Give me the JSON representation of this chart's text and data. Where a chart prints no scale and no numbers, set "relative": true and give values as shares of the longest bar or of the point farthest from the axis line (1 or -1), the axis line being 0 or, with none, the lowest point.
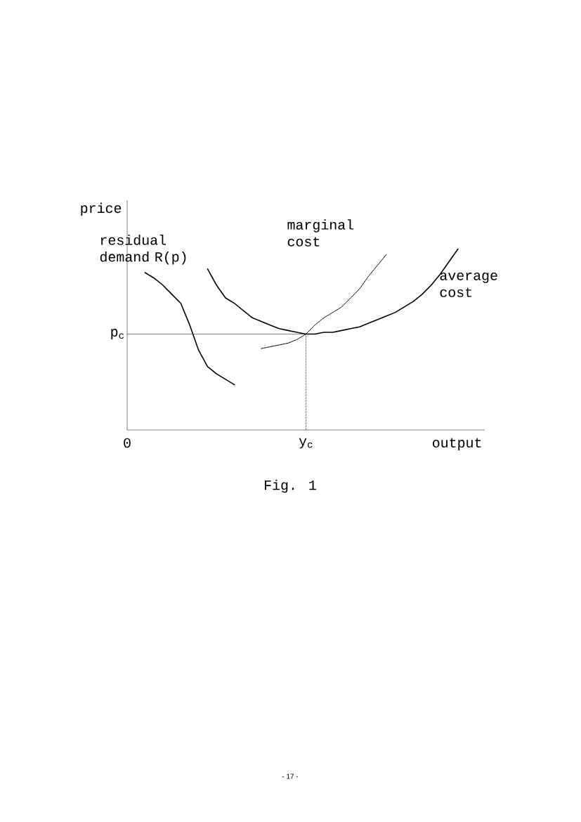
{
  "chart_data": {
    "type": "line",
    "relative": true,
    "ylabel": "price",
    "xlabel": "output",
    "categories": [
      "0",
      null,
      null,
      null,
      null,
      null,
      null,
      null,
      null,
      null,
      null,
      null,
      null,
      null,
      null,
      null,
      null,
      null,
      null,
      null,
      "y$_{c}$",
      null,
      null,
      null,
      null,
      null,
      null,
      null,
      null,
      null,
      null,
      null,
      null,
      null,
      null,
      null,
      null,
      null,
      null,
      null,
      null
    ],
    "series": [
      {
        "name": "residual demand R(p)",
        "color": "#000000",
        "line_style": "solid",
        "values": [
          null,
          null,
          0.87,
          0.84,
          0.8,
          0.75,
          0.7,
          0.58,
          0.44,
          0.35,
          0.31,
          0.28,
          0.25,
          null,
          null,
          null,
          null,
          null,
          null,
          null,
          null,
          null,
          null,
          null,
          null,
          null,
          null,
          null,
          null,
          null,
          null,
          null,
          null,
          null,
          null,
          null,
          null,
          null,
          null,
          null,
          null
        ]
      },
      {
        "name": "marginal cost",
        "color": "#000000",
        "line_style": "dashed",
        "values": [
          null,
          null,
          null,
          null,
          null,
          null,
          null,
          null,
          null,
          null,
          null,
          null,
          null,
          null,
          null,
          0.45,
          0.46,
          0.47,
          0.48,
          0.5,
          0.53,
          0.58,
          0.62,
          0.65,
          0.68,
          0.73,
          0.78,
          0.85,
          0.91,
          0.97,
          null,
          null,
          null,
          null,
          null,
          null,
          null,
          null,
          null,
          null,
          null
        ]
      },
      {
        "name": "average cost",
        "color": "#000000",
        "line_style": "solid",
        "values": [
          null,
          null,
          null,
          null,
          null,
          null,
          null,
          null,
          null,
          0.89,
          0.8,
          0.73,
          0.7,
          0.66,
          0.62,
          0.6,
          0.58,
          0.56,
          0.55,
          0.54,
          0.53,
          0.53,
          0.54,
          0.54,
          0.55,
          0.56,
          0.57,
          0.59,
          0.61,
          0.63,
          0.65,
          0.68,
          0.71,
          0.75,
          0.8,
          0.86,
          0.93,
          1.0,
          null,
          null,
          null
        ]
      }
    ],
    "ref_lines": [
      {
        "axis": "y",
        "value": 0.53,
        "label": "p$_{c}$",
        "line_style": "solid"
      },
      {
        "axis": "x",
        "value": "y$_{c}$",
        "line_style": "dashed"
      }
    ],
    "annotations": [
      "Fig. 1",
      "- 17 -"
    ]
  }
}
